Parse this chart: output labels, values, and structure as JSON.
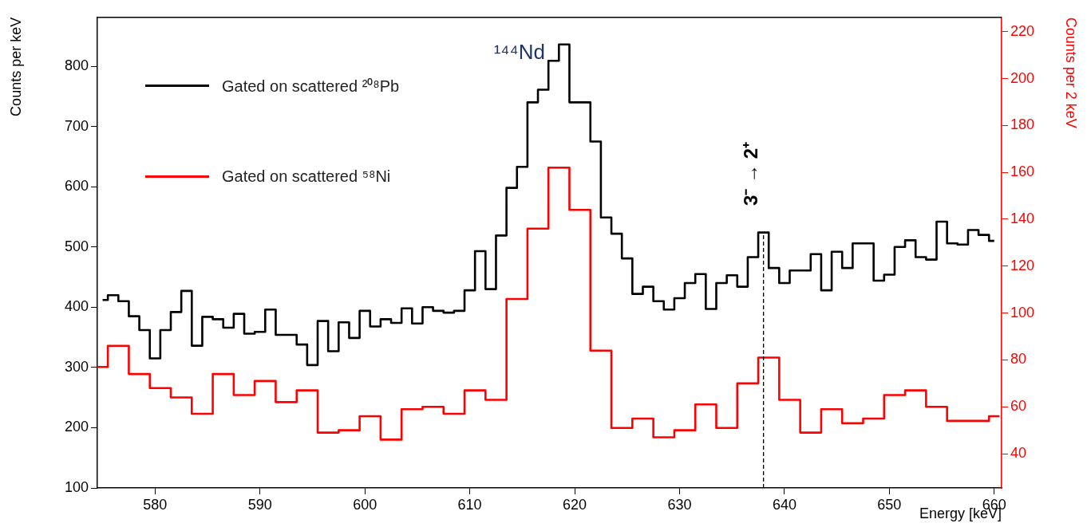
{
  "chart_data": {
    "type": "step",
    "xlabel": "Energy [keV]",
    "ylabel": "Counts per keV",
    "y2label": "Counts per 2 keV",
    "xlim": [
      574.5,
      660.7
    ],
    "xticks": [
      580,
      590,
      600,
      610,
      620,
      630,
      640,
      650,
      660
    ],
    "ylim": [
      100,
      881
    ],
    "yticks": [
      100,
      200,
      300,
      400,
      500,
      600,
      700,
      800
    ],
    "y2lim": [
      25.4,
      226.1
    ],
    "y2ticks": [
      40,
      60,
      80,
      100,
      120,
      140,
      160,
      180,
      200,
      220
    ],
    "legend": "top left",
    "series": [
      {
        "name": "Gated on scattered ²⁰⁸Pb",
        "color": "#000000",
        "x": [
          575,
          576,
          577,
          578,
          579,
          580,
          581,
          582,
          583,
          584,
          585,
          586,
          587,
          588,
          589,
          590,
          591,
          592,
          593,
          594,
          595,
          596,
          597,
          598,
          599,
          600,
          601,
          602,
          603,
          604,
          605,
          606,
          607,
          608,
          609,
          610,
          611,
          612,
          613,
          614,
          615,
          616,
          617,
          618,
          619,
          620,
          621,
          622,
          623,
          624,
          625,
          626,
          627,
          628,
          629,
          630,
          631,
          632,
          633,
          634,
          635,
          636,
          637,
          638,
          639,
          640,
          641,
          642,
          643,
          644,
          645,
          646,
          647,
          648,
          649,
          650,
          651,
          652,
          653,
          654,
          655,
          656,
          657,
          658,
          659,
          660
        ],
        "values": [
          412,
          420,
          410,
          385,
          362,
          315,
          362,
          392,
          427,
          336,
          384,
          380,
          366,
          389,
          356,
          359,
          396,
          354,
          354,
          338,
          304,
          377,
          327,
          375,
          349,
          394,
          368,
          380,
          374,
          398,
          373,
          400,
          394,
          391,
          394,
          428,
          493,
          430,
          519,
          598,
          633,
          740,
          761,
          809,
          836,
          740,
          740,
          675,
          549,
          522,
          481,
          422,
          434,
          410,
          396,
          415,
          440,
          455,
          397,
          440,
          453,
          434,
          483,
          524,
          465,
          440,
          461,
          461,
          488,
          428,
          492,
          465,
          506,
          506,
          444,
          454,
          500,
          511,
          483,
          479,
          542,
          506,
          504,
          528,
          520,
          510
        ]
      },
      {
        "name": "Gated on scattered ⁵⁸Ni",
        "color": "#ff0000",
        "axis": "y2",
        "x": [
          574.5,
          576.5,
          578.5,
          580.5,
          582.5,
          584.5,
          586.5,
          588.5,
          590.5,
          592.5,
          594.5,
          596.5,
          598.5,
          600.5,
          602.5,
          604.5,
          606.5,
          608.5,
          610.5,
          612.5,
          614.5,
          616.5,
          618.5,
          620.5,
          622.5,
          624.5,
          626.5,
          628.5,
          630.5,
          632.5,
          634.5,
          636.5,
          638.5,
          640.5,
          642.5,
          644.5,
          646.5,
          648.5,
          650.5,
          652.5,
          654.5,
          656.5,
          658.5,
          660.5
        ],
        "values": [
          77,
          86,
          74,
          68,
          64,
          57,
          74,
          65,
          71,
          62,
          67,
          49,
          50,
          56,
          46,
          59,
          60,
          57,
          67,
          63,
          106,
          136,
          162,
          144,
          84,
          51,
          55,
          47,
          50,
          61,
          51,
          70,
          81,
          63,
          49,
          59,
          53,
          55,
          65,
          67,
          60,
          54,
          54,
          56
        ]
      }
    ],
    "ref_lines": [
      {
        "axis": "x",
        "value": 638,
        "label": "3⁻ → 2⁺",
        "color": "#000000",
        "line_style": "dashed"
      }
    ],
    "annotations": [
      {
        "text": "¹⁴⁴Nd",
        "x": 619,
        "y": 836
      }
    ]
  }
}
